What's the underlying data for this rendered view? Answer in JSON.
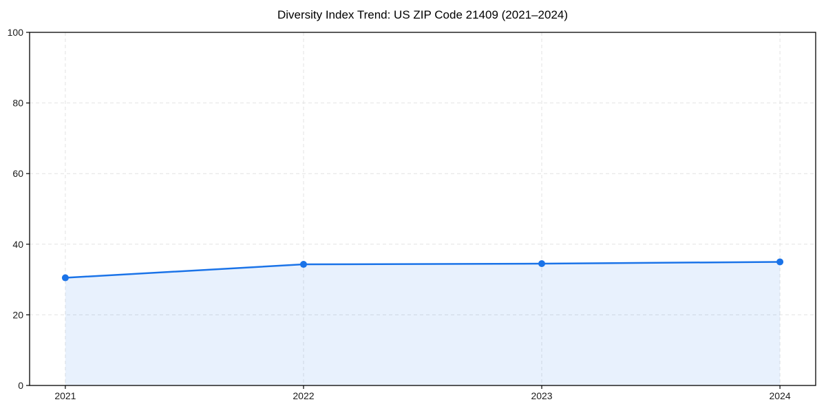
{
  "chart_data": {
    "type": "area",
    "title": "Diversity Index Trend: US ZIP Code 21409 (2021–2024)",
    "x": [
      2021,
      2022,
      2023,
      2024
    ],
    "series": [
      {
        "name": "Diversity Index",
        "values": [
          30.5,
          34.3,
          34.5,
          35.0
        ]
      }
    ],
    "xlabel": "",
    "ylabel": "",
    "xlim": [
      2020.85,
      2024.15
    ],
    "ylim": [
      0,
      100
    ],
    "xticks": [
      2021,
      2022,
      2023,
      2024
    ],
    "yticks": [
      0,
      20,
      40,
      60,
      80,
      100
    ],
    "grid": true,
    "grid_style": "dashed",
    "legend": false,
    "colors": {
      "line": "#1a73e8",
      "marker": "#1a73e8",
      "fill": "rgba(26,115,232,0.10)",
      "grid": "#e2e2e2",
      "spine": "#000000",
      "tick_text": "#1a1a1a",
      "background": "#ffffff"
    }
  }
}
